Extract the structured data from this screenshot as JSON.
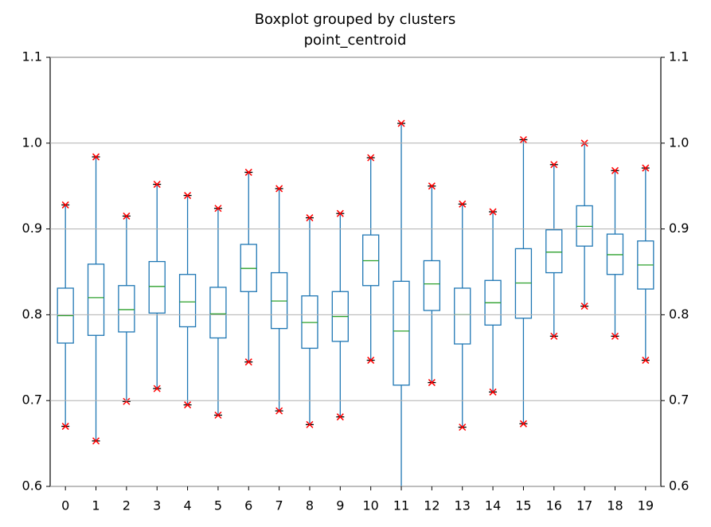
{
  "chart_data": {
    "type": "box",
    "title": "Boxplot grouped by clusters",
    "subtitle": "point_centroid",
    "categories": [
      "0",
      "1",
      "2",
      "3",
      "4",
      "5",
      "6",
      "7",
      "8",
      "9",
      "10",
      "11",
      "12",
      "13",
      "14",
      "15",
      "16",
      "17",
      "18",
      "19"
    ],
    "whislo": [
      0.67,
      0.653,
      0.699,
      0.714,
      0.695,
      0.683,
      0.745,
      0.688,
      0.672,
      0.681,
      0.747,
      0.55,
      0.721,
      0.669,
      0.71,
      0.673,
      0.775,
      0.81,
      0.775,
      0.747
    ],
    "q1": [
      0.767,
      0.776,
      0.78,
      0.802,
      0.786,
      0.773,
      0.827,
      0.784,
      0.761,
      0.769,
      0.834,
      0.718,
      0.805,
      0.766,
      0.788,
      0.796,
      0.849,
      0.88,
      0.847,
      0.83
    ],
    "median": [
      0.799,
      0.82,
      0.806,
      0.833,
      0.815,
      0.801,
      0.854,
      0.816,
      0.791,
      0.798,
      0.863,
      0.781,
      0.836,
      0.8,
      0.814,
      0.837,
      0.873,
      0.903,
      0.87,
      0.858
    ],
    "q3": [
      0.831,
      0.859,
      0.834,
      0.862,
      0.847,
      0.832,
      0.882,
      0.849,
      0.822,
      0.827,
      0.893,
      0.839,
      0.863,
      0.831,
      0.84,
      0.877,
      0.899,
      0.927,
      0.894,
      0.886
    ],
    "whishi": [
      0.928,
      0.984,
      0.915,
      0.952,
      0.939,
      0.924,
      0.966,
      0.947,
      0.913,
      0.918,
      0.983,
      1.023,
      0.95,
      0.929,
      0.92,
      1.004,
      0.975,
      1.0,
      0.968,
      0.971
    ],
    "box_color": "#1f77b4",
    "median_color": "#2ca02c",
    "marker_color": "#ff0000",
    "ylim": [
      0.6,
      1.1
    ],
    "yticks": [
      0.6,
      0.7,
      0.8,
      0.9,
      {
        "value": 1,
        "label": "1.0"
      },
      1.1
    ],
    "y2lim": [
      0.6,
      1.1
    ],
    "y2ticks": [
      0.6,
      0.7,
      0.8,
      0.9,
      {
        "value": 1,
        "label": "1.0"
      },
      1.1
    ],
    "grid": true
  }
}
